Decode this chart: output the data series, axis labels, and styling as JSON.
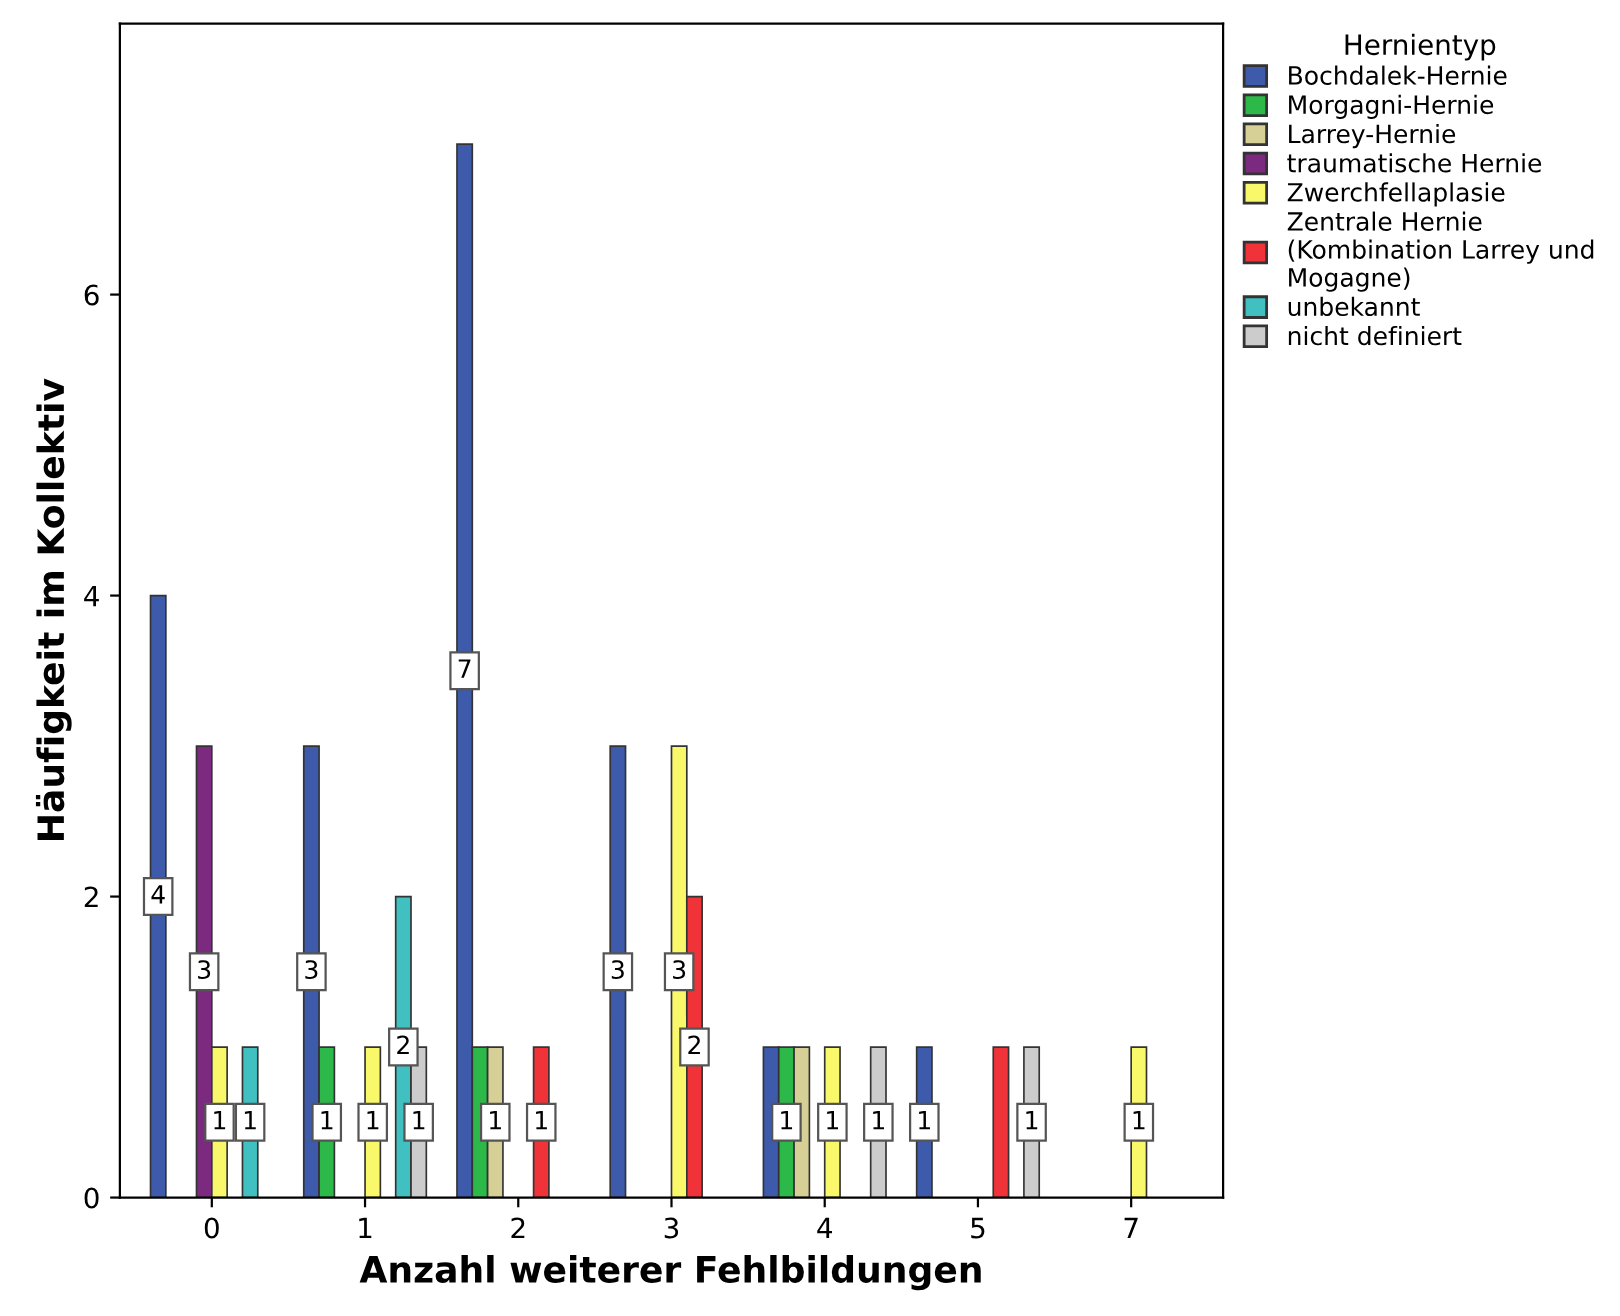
{
  "chart_data": {
    "type": "bar",
    "xlabel": "Anzahl weiterer Fehlbildungen",
    "ylabel": "Häufigkeit im Kollektiv",
    "legend_title": "Hernientyp",
    "legend": "right",
    "grid": false,
    "categories": [
      "0",
      "1",
      "2",
      "3",
      "4",
      "5",
      "7"
    ],
    "ylim": [
      0,
      7.8
    ],
    "yticks": [
      0,
      2,
      4,
      6
    ],
    "series": [
      {
        "name": "Bochdalek-Hernie",
        "color": "#3d5aab",
        "values": [
          4,
          3,
          7,
          3,
          1,
          1,
          null
        ],
        "value_labels": [
          "4",
          "3",
          "7",
          "3",
          null,
          "1",
          null
        ]
      },
      {
        "name": "Morgagni-Hernie",
        "color": "#2db84a",
        "values": [
          null,
          1,
          1,
          null,
          1,
          null,
          null
        ],
        "value_labels": [
          null,
          "1",
          null,
          null,
          "1",
          null,
          null
        ]
      },
      {
        "name": "Larrey-Hernie",
        "color": "#d6cf96",
        "values": [
          null,
          null,
          1,
          null,
          1,
          null,
          null
        ],
        "value_labels": [
          null,
          null,
          "1",
          null,
          null,
          null,
          null
        ]
      },
      {
        "name": "traumatische Hernie",
        "color": "#7b2a7f",
        "values": [
          3,
          null,
          null,
          null,
          null,
          null,
          null
        ],
        "value_labels": [
          "3",
          null,
          null,
          null,
          null,
          null,
          null
        ]
      },
      {
        "name": "Zwerchfellaplasie",
        "color": "#f9f76a",
        "values": [
          1,
          1,
          null,
          3,
          1,
          null,
          1
        ],
        "value_labels": [
          "1",
          "1",
          null,
          "3",
          "1",
          null,
          "1"
        ]
      },
      {
        "name": "Zentrale Hernie\n(Kombination Larrey und\nMogagne)",
        "color": "#ef3338",
        "values": [
          null,
          null,
          1,
          2,
          null,
          1,
          null
        ],
        "value_labels": [
          null,
          null,
          "1",
          "2",
          null,
          null,
          null
        ]
      },
      {
        "name": "unbekannt",
        "color": "#40c0c0",
        "values": [
          1,
          2,
          null,
          null,
          null,
          null,
          null
        ],
        "value_labels": [
          "1",
          "2",
          null,
          null,
          null,
          null,
          null
        ]
      },
      {
        "name": "nicht definiert",
        "color": "#cccccc",
        "values": [
          null,
          1,
          null,
          null,
          1,
          1,
          null
        ],
        "value_labels": [
          null,
          "1",
          null,
          null,
          "1",
          "1",
          null
        ]
      }
    ]
  }
}
